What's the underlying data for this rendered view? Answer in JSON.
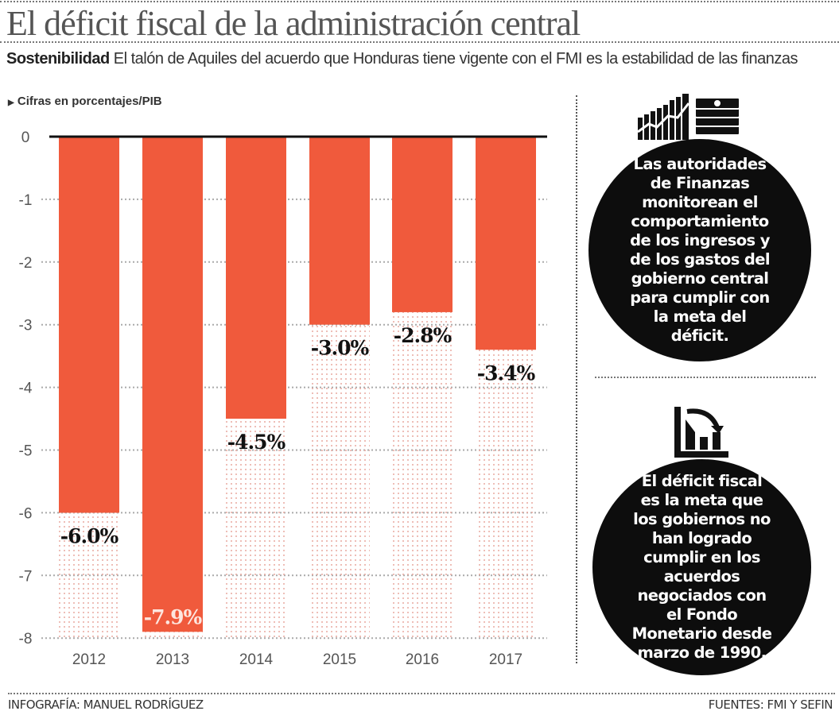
{
  "title": "El déficit fiscal de la administración central",
  "subtitle": {
    "lead": "Sostenibilidad",
    "text": "El talón de Aquiles del acuerdo que Honduras tiene vigente con el FMI es la estabilidad de las finanzas"
  },
  "units_note": "Cifras en porcentajes/PIB",
  "chart_data": {
    "type": "bar",
    "categories": [
      "2012",
      "2013",
      "2014",
      "2015",
      "2016",
      "2017"
    ],
    "values": [
      -6.0,
      -7.9,
      -4.5,
      -3.0,
      -2.8,
      -3.4
    ],
    "data_labels": [
      "-6.0%",
      "-7.9%",
      "-4.5%",
      "-3.0%",
      "-2.8%",
      "-3.4%"
    ],
    "ylim": [
      -8,
      0
    ],
    "yticks": [
      "0",
      "-1",
      "-2",
      "-3",
      "-4",
      "-5",
      "-6",
      "-7",
      "-8"
    ],
    "grid": true,
    "bar_color": "#f05a3c",
    "title": "",
    "xlabel": "",
    "ylabel": ""
  },
  "side_panel": {
    "icon1": "chart-and-money-icon",
    "text1": "Las autoridades de Finanzas monitorean el comportamiento de los ingresos y de los gastos del gobierno central para cumplir con la meta del déficit.",
    "icon2": "declining-bar-chart-icon",
    "text2": "El déficit fiscal es la meta que los gobiernos no han logrado cumplir en los acuerdos negociados con el Fondo Monetario desde marzo de 1990."
  },
  "footer": {
    "credit": "INFOGRAFÍA: MANUEL RODRÍGUEZ",
    "sources": "FUENTES: FMI Y SEFIN"
  }
}
